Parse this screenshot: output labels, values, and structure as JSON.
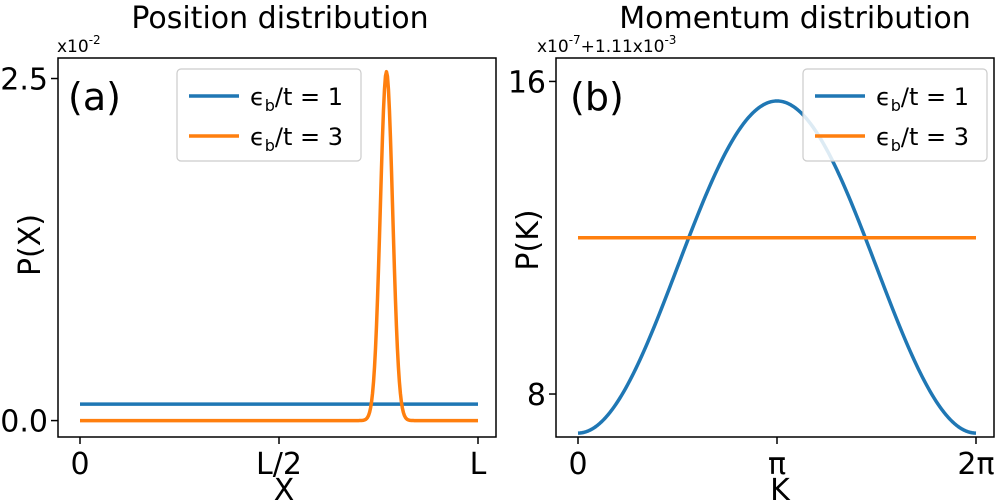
{
  "chart_data": [
    {
      "type": "line",
      "panel_label": "(a)",
      "title": "Position distribution",
      "xlabel": "X",
      "ylabel": "P(X)",
      "y_multiplier_text": "x10",
      "y_multiplier_exp": "-2",
      "x_ticks": [
        "0",
        "L/2",
        "L"
      ],
      "y_ticks": [
        0.0,
        2.5
      ],
      "y_tick_labels": [
        "0.0",
        "2.5"
      ],
      "xlim": [
        0,
        1
      ],
      "ylim": [
        -0.12,
        2.65
      ],
      "legend_position": "top-right",
      "series": [
        {
          "name": "εb/t = 1",
          "legend_parts": [
            "ϵ",
            "b",
            "/t = 1"
          ],
          "color": "#1f77b4",
          "x": [
            0.0,
            0.25,
            0.5,
            0.75,
            1.0
          ],
          "y": [
            0.12,
            0.12,
            0.12,
            0.12,
            0.12
          ]
        },
        {
          "name": "εb/t = 3",
          "legend_parts": [
            "ϵ",
            "b",
            "/t = 3"
          ],
          "color": "#ff7f0e",
          "x": [
            0.0,
            0.7,
            0.73,
            0.74,
            0.75,
            0.76,
            0.77,
            0.78,
            0.79,
            0.8,
            1.0
          ],
          "y": [
            0.0,
            0.0,
            0.05,
            0.25,
            0.9,
            1.9,
            2.55,
            1.9,
            0.9,
            0.2,
            0.0
          ]
        }
      ]
    },
    {
      "type": "line",
      "panel_label": "(b)",
      "title": "Momentum distribution",
      "xlabel": "K",
      "ylabel": "P(K)",
      "y_offset_text": "x10",
      "y_offset_exp1": "-7",
      "y_offset_mid": "+1.11x10",
      "y_offset_exp2": "-3",
      "x_ticks": [
        "0",
        "π",
        "2π"
      ],
      "y_ticks": [
        8,
        16
      ],
      "y_tick_labels": [
        "8",
        "16"
      ],
      "xlim": [
        0,
        6.2832
      ],
      "ylim": [
        6.9,
        16.6
      ],
      "legend_position": "top-right",
      "series": [
        {
          "name": "εb/t = 1",
          "legend_parts": [
            "ϵ",
            "b",
            "/t = 1"
          ],
          "color": "#1f77b4",
          "function": "cosine",
          "x": [
            0,
            0.785,
            1.571,
            2.356,
            3.1416,
            3.927,
            4.712,
            5.498,
            6.2832
          ],
          "y": [
            7.0,
            8.3,
            11.2,
            14.2,
            15.5,
            14.2,
            11.2,
            8.3,
            7.0
          ]
        },
        {
          "name": "εb/t = 3",
          "legend_parts": [
            "ϵ",
            "b",
            "/t = 3"
          ],
          "color": "#ff7f0e",
          "x": [
            0,
            6.2832
          ],
          "y": [
            12.0,
            12.0
          ]
        }
      ]
    }
  ]
}
